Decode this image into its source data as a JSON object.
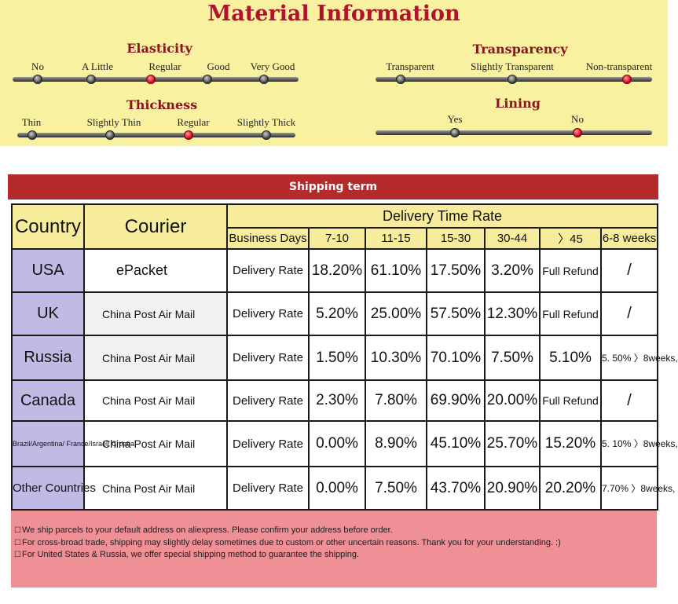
{
  "material": {
    "title": "Material Information",
    "elasticity": {
      "title": "Elasticity",
      "options": [
        "No",
        "A Little",
        "Regular",
        "Good",
        "Very Good"
      ],
      "selected": "Regular"
    },
    "thickness": {
      "title": "Thickness",
      "options": [
        "Thin",
        "Slightly Thin",
        "Regular",
        "Slightly Thick"
      ],
      "selected": "Regular"
    },
    "transparency": {
      "title": "Transparency",
      "options": [
        "Transparent",
        "Slightly Transparent",
        "Non-transparent"
      ],
      "selected": "Non-transparent"
    },
    "lining": {
      "title": "Lining",
      "options": [
        "Yes",
        "No"
      ],
      "selected": "No"
    }
  },
  "shipping": {
    "bar_title": "Shipping term",
    "headers": {
      "country": "Country",
      "courier": "Courier",
      "delivery_time_rate": "Delivery Time Rate",
      "business_days": "Business Days",
      "ranges": [
        "7-10",
        "11-15",
        "15-30",
        "30-44",
        "〉45",
        "6-8 weeks"
      ]
    },
    "rows": [
      {
        "country": "USA",
        "courier": "ePacket",
        "rate_label": "Delivery Rate",
        "values": [
          "18.20%",
          "61.10%",
          "17.50%",
          "3.20%",
          "Full Refund",
          "/"
        ]
      },
      {
        "country": "UK",
        "courier": "China Post Air Mail",
        "rate_label": "Delivery Rate",
        "values": [
          "5.20%",
          "25.00%",
          "57.50%",
          "12.30%",
          "Full Refund",
          "/"
        ]
      },
      {
        "country": "Russia",
        "courier": "China Post Air Mail",
        "rate_label": "Delivery Rate",
        "values": [
          "1.50%",
          "10.30%",
          "70.10%",
          "7.50%",
          "5.10%",
          "5. 50% 〉8weeks,"
        ]
      },
      {
        "country": "Canada",
        "courier": "China Post Air Mail",
        "rate_label": "Delivery Rate",
        "values": [
          "2.30%",
          "7.80%",
          "69.90%",
          "20.00%",
          "Full Refund",
          "/"
        ]
      },
      {
        "country": "Brazil/Argentina/ France/Israel/ Croatia",
        "courier": "China Post Air Mail",
        "rate_label": "Delivery Rate",
        "values": [
          "0.00%",
          "8.90%",
          "45.10%",
          "25.70%",
          "15.20%",
          "5. 10% 〉8weeks,"
        ]
      },
      {
        "country": "Other Countries",
        "courier": "China Post Air Mail",
        "rate_label": "Delivery Rate",
        "values": [
          "0.00%",
          "7.50%",
          "43.70%",
          "20.90%",
          "20.20%",
          "7.70% 〉8weeks,"
        ]
      }
    ],
    "notes": [
      "We ship parcels to your default address on aliexpress. Please confirm your address before order.",
      "For cross-broad trade, shipping may slightly delay sometimes due to custom or other uncertain reasons. Thank you for your understanding. :)",
      "For United States & Russia, we offer special shipping method to guarantee the shipping."
    ]
  }
}
